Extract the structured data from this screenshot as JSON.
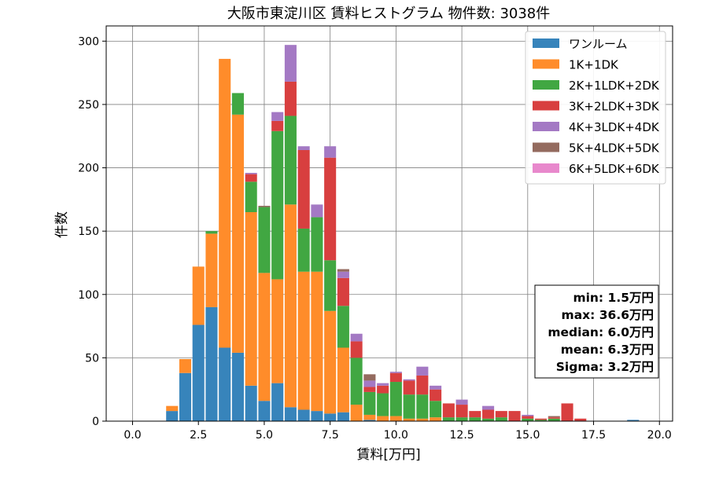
{
  "chart_data": {
    "type": "bar",
    "stacked": true,
    "title": "大阪市東淀川区 賃料ヒストグラム 物件数: 3038件",
    "xlabel": "賃料[万円]",
    "ylabel": "件数",
    "xlim": [
      -1.0,
      20.5
    ],
    "ylim": [
      0,
      312
    ],
    "bin_width": 0.5,
    "xticks": [
      0.0,
      2.5,
      5.0,
      7.5,
      10.0,
      12.5,
      15.0,
      17.5,
      20.0
    ],
    "xtick_labels": [
      "0.0",
      "2.5",
      "5.0",
      "7.5",
      "10.0",
      "12.5",
      "15.0",
      "17.5",
      "20.0"
    ],
    "yticks": [
      0,
      50,
      100,
      150,
      200,
      250,
      300
    ],
    "ytick_labels": [
      "0",
      "50",
      "100",
      "150",
      "200",
      "250",
      "300"
    ],
    "grid": true,
    "legend_position": "top-right",
    "x": [
      1.5,
      2.0,
      2.5,
      3.0,
      3.5,
      4.0,
      4.5,
      5.0,
      5.5,
      6.0,
      6.5,
      7.0,
      7.5,
      8.0,
      8.5,
      9.0,
      9.5,
      10.0,
      10.5,
      11.0,
      11.5,
      12.0,
      12.5,
      13.0,
      13.5,
      14.0,
      14.5,
      15.0,
      15.5,
      16.0,
      16.5,
      17.0,
      17.5,
      18.0,
      18.5,
      19.0,
      19.5,
      20.0
    ],
    "series": [
      {
        "name": "ワンルーム",
        "color": "#3784bb",
        "values": [
          8,
          38,
          76,
          90,
          58,
          54,
          28,
          16,
          30,
          11,
          9,
          8,
          6,
          7,
          0,
          1,
          0,
          0,
          0,
          0,
          0,
          0,
          0,
          0,
          0,
          0,
          0,
          0,
          0,
          0,
          0,
          0,
          0,
          0,
          0,
          1,
          0,
          0
        ]
      },
      {
        "name": "1K+1DK",
        "color": "#ff8c2a",
        "values": [
          4,
          11,
          46,
          58,
          228,
          188,
          137,
          101,
          82,
          160,
          109,
          110,
          81,
          51,
          13,
          4,
          4,
          4,
          2,
          2,
          3,
          0,
          0,
          0,
          0,
          0,
          0,
          0,
          0,
          0,
          0,
          0,
          0,
          0,
          0,
          0,
          0,
          0
        ]
      },
      {
        "name": "2K+1LDK+2DK",
        "color": "#41a742",
        "values": [
          0,
          0,
          0,
          2,
          0,
          17,
          24,
          52,
          117,
          70,
          34,
          43,
          40,
          33,
          37,
          18,
          18,
          27,
          19,
          19,
          13,
          3,
          3,
          3,
          2,
          3,
          0,
          2,
          1,
          2,
          0,
          0,
          0,
          0,
          0,
          0,
          0,
          0
        ]
      },
      {
        "name": "3K+2LDK+3DK",
        "color": "#d83f3f",
        "values": [
          0,
          0,
          0,
          0,
          0,
          0,
          6,
          0,
          8,
          27,
          62,
          0,
          81,
          22,
          13,
          4,
          6,
          7,
          11,
          15,
          9,
          11,
          10,
          5,
          7,
          5,
          8,
          2,
          1,
          1,
          14,
          2,
          0,
          0,
          0,
          0,
          0,
          0
        ]
      },
      {
        "name": "4K+3LDK+4DK",
        "color": "#a479c4",
        "values": [
          0,
          0,
          0,
          0,
          0,
          0,
          1,
          0,
          7,
          29,
          3,
          10,
          9,
          5,
          6,
          5,
          2,
          1,
          1,
          7,
          3,
          0,
          4,
          0,
          3,
          0,
          0,
          1,
          0,
          0,
          0,
          0,
          0,
          0,
          0,
          0,
          0,
          0
        ]
      },
      {
        "name": "5K+4LDK+5DK",
        "color": "#946b5f",
        "values": [
          0,
          0,
          0,
          0,
          0,
          0,
          0,
          1,
          0,
          0,
          0,
          0,
          0,
          2,
          0,
          5,
          0,
          0,
          0,
          0,
          0,
          0,
          0,
          0,
          0,
          0,
          0,
          0,
          0,
          1,
          0,
          0,
          0,
          0,
          0,
          0,
          0,
          0
        ]
      },
      {
        "name": "6K+5LDK+6DK",
        "color": "#e888cc",
        "values": [
          0,
          0,
          0,
          0,
          0,
          0,
          0,
          0,
          0,
          0,
          0,
          0,
          0,
          0,
          0,
          0,
          0,
          0,
          0,
          0,
          0,
          0,
          0,
          0,
          0,
          0,
          0,
          0,
          0,
          0,
          0,
          0,
          0,
          0,
          0,
          0,
          0,
          0
        ]
      }
    ],
    "stats": [
      "min: 1.5万円",
      "max: 36.6万円",
      "median: 6.0万円",
      "mean: 6.3万円",
      "Sigma: 3.2万円"
    ]
  }
}
